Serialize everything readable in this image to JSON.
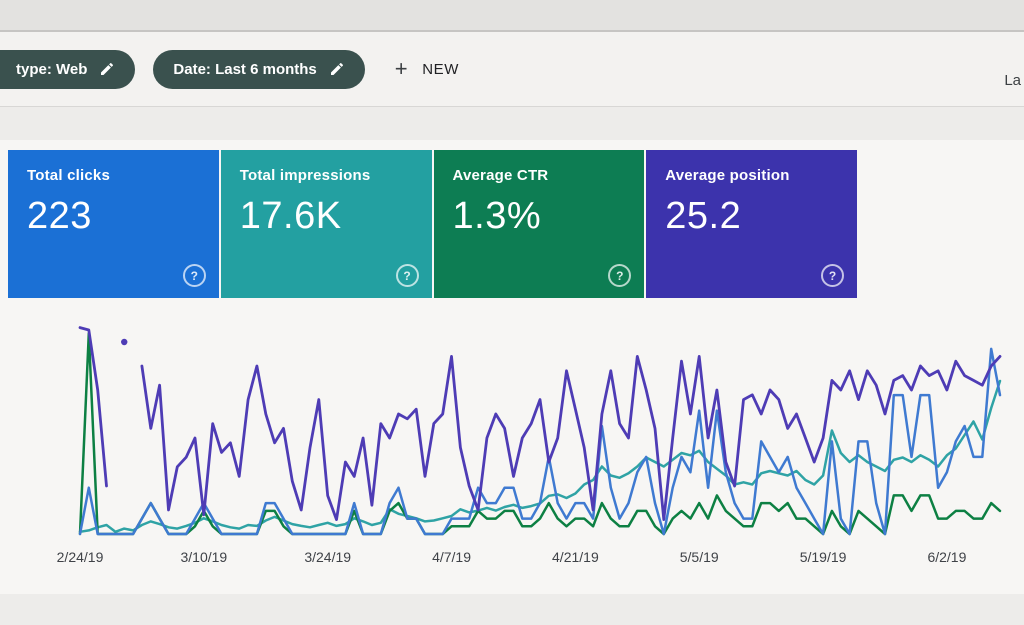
{
  "window": {
    "top_note_partial": "La"
  },
  "ui": {
    "help_glyph": "?",
    "plus_glyph": "+"
  },
  "toolbar": {
    "chips": [
      {
        "label": "type: Web"
      },
      {
        "label": "Date: Last 6 months"
      }
    ],
    "new_button_label": "NEW"
  },
  "cards": [
    {
      "label": "Total clicks",
      "value": "223",
      "color": "#1b70d5"
    },
    {
      "label": "Total impressions",
      "value": "17.6K",
      "color": "#23a0a1"
    },
    {
      "label": "Average CTR",
      "value": "1.3%",
      "color": "#0d7d53"
    },
    {
      "label": "Average position",
      "value": "25.2",
      "color": "#3c33ac"
    }
  ],
  "chart_data": {
    "type": "line",
    "title": "",
    "xlabel": "",
    "ylabel": "",
    "grid": false,
    "legend_position": "none",
    "days_total": 105,
    "x_start_date": "2/24/19",
    "x_tick_days": [
      0,
      14,
      28,
      42,
      56,
      70,
      84,
      98
    ],
    "x_tick_labels": [
      "2/24/19",
      "3/10/19",
      "3/24/19",
      "4/7/19",
      "4/21/19",
      "5/5/19",
      "5/19/19",
      "6/2/19"
    ],
    "series": [
      {
        "name": "Impressions",
        "color": "#2fa3a5",
        "range": [
          0,
          480
        ],
        "inverted": false,
        "values": [
          5,
          8,
          15,
          20,
          5,
          12,
          8,
          20,
          28,
          22,
          15,
          12,
          18,
          25,
          35,
          28,
          20,
          15,
          12,
          20,
          18,
          30,
          38,
          30,
          22,
          18,
          15,
          20,
          25,
          18,
          22,
          35,
          28,
          20,
          25,
          55,
          45,
          40,
          35,
          28,
          30,
          35,
          40,
          55,
          48,
          52,
          58,
          52,
          60,
          65,
          58,
          62,
          68,
          85,
          88,
          80,
          90,
          110,
          120,
          150,
          130,
          125,
          135,
          150,
          170,
          160,
          150,
          165,
          180,
          175,
          185,
          160,
          145,
          130,
          110,
          115,
          110,
          135,
          140,
          135,
          130,
          140,
          120,
          110,
          130,
          230,
          180,
          160,
          175,
          160,
          150,
          140,
          165,
          170,
          160,
          175,
          165,
          150,
          175,
          190,
          220,
          250,
          210,
          280,
          340
        ]
      },
      {
        "name": "CTR",
        "color": "#0d8043",
        "range": [
          0,
          28
        ],
        "inverted": false,
        "unit": "%",
        "values": [
          0,
          26,
          0,
          0,
          0,
          0,
          0,
          2,
          4,
          2,
          0,
          0,
          0,
          1,
          3,
          1,
          0,
          0,
          0,
          0,
          0,
          3,
          3,
          1,
          0,
          0,
          0,
          0,
          0,
          0,
          0,
          3,
          0,
          0,
          0,
          3,
          4,
          2,
          2,
          0,
          0,
          0,
          1,
          1,
          1,
          3,
          2,
          2,
          3,
          3,
          1,
          1,
          2,
          4,
          2,
          1,
          2,
          2,
          1,
          4,
          2,
          1,
          1,
          3,
          3,
          1,
          0,
          2,
          3,
          2,
          4,
          2,
          5,
          3,
          2,
          1,
          1,
          4,
          4,
          3,
          4,
          2,
          2,
          1,
          0,
          3,
          1,
          0,
          3,
          2,
          1,
          0,
          5,
          5,
          3,
          5,
          5,
          2,
          2,
          3,
          3,
          2,
          2,
          4,
          3
        ]
      },
      {
        "name": "Clicks",
        "color": "#3f7ad1",
        "range": [
          0,
          14
        ],
        "inverted": false,
        "values": [
          0,
          3,
          0,
          0,
          0,
          0,
          0,
          1,
          2,
          1,
          0,
          0,
          0,
          1,
          2,
          1,
          0,
          0,
          0,
          0,
          0,
          2,
          2,
          1,
          0,
          0,
          0,
          0,
          0,
          0,
          0,
          2,
          0,
          0,
          0,
          2,
          3,
          1,
          1,
          0,
          0,
          0,
          1,
          1,
          1,
          3,
          2,
          2,
          3,
          3,
          1,
          1,
          2,
          5,
          2,
          1,
          2,
          2,
          1,
          7,
          3,
          1,
          2,
          4,
          5,
          2,
          0,
          3,
          5,
          4,
          8,
          3,
          8,
          4,
          2,
          1,
          1,
          6,
          5,
          4,
          5,
          3,
          2,
          1,
          0,
          6,
          1,
          0,
          6,
          6,
          2,
          0,
          9,
          9,
          5,
          9,
          9,
          3,
          4,
          6,
          7,
          5,
          5,
          12,
          9
        ]
      },
      {
        "name": "Position",
        "color": "#4e3cb5",
        "range": [
          5,
          50
        ],
        "inverted": true,
        "values": [
          7,
          7.5,
          20,
          40,
          null,
          10,
          null,
          15,
          28,
          19,
          45,
          36,
          34,
          30,
          46,
          27,
          33,
          31,
          38,
          22,
          15,
          25,
          31,
          28,
          39,
          45,
          32,
          22,
          42,
          47,
          35,
          38,
          30,
          44,
          27,
          30,
          25,
          26,
          24,
          38,
          27,
          25,
          13,
          32,
          40,
          45,
          30,
          25,
          28,
          38,
          30,
          27,
          22,
          35,
          30,
          16,
          24,
          32,
          45,
          25,
          16,
          27,
          30,
          13,
          20,
          28,
          47,
          30,
          14,
          25,
          13,
          30,
          20,
          35,
          40,
          22,
          21,
          25,
          20,
          22,
          28,
          25,
          30,
          35,
          30,
          18,
          20,
          16,
          22,
          16,
          19,
          25,
          18,
          17,
          20,
          15,
          17,
          16,
          20,
          14,
          17,
          18,
          19,
          15,
          13
        ]
      }
    ]
  }
}
